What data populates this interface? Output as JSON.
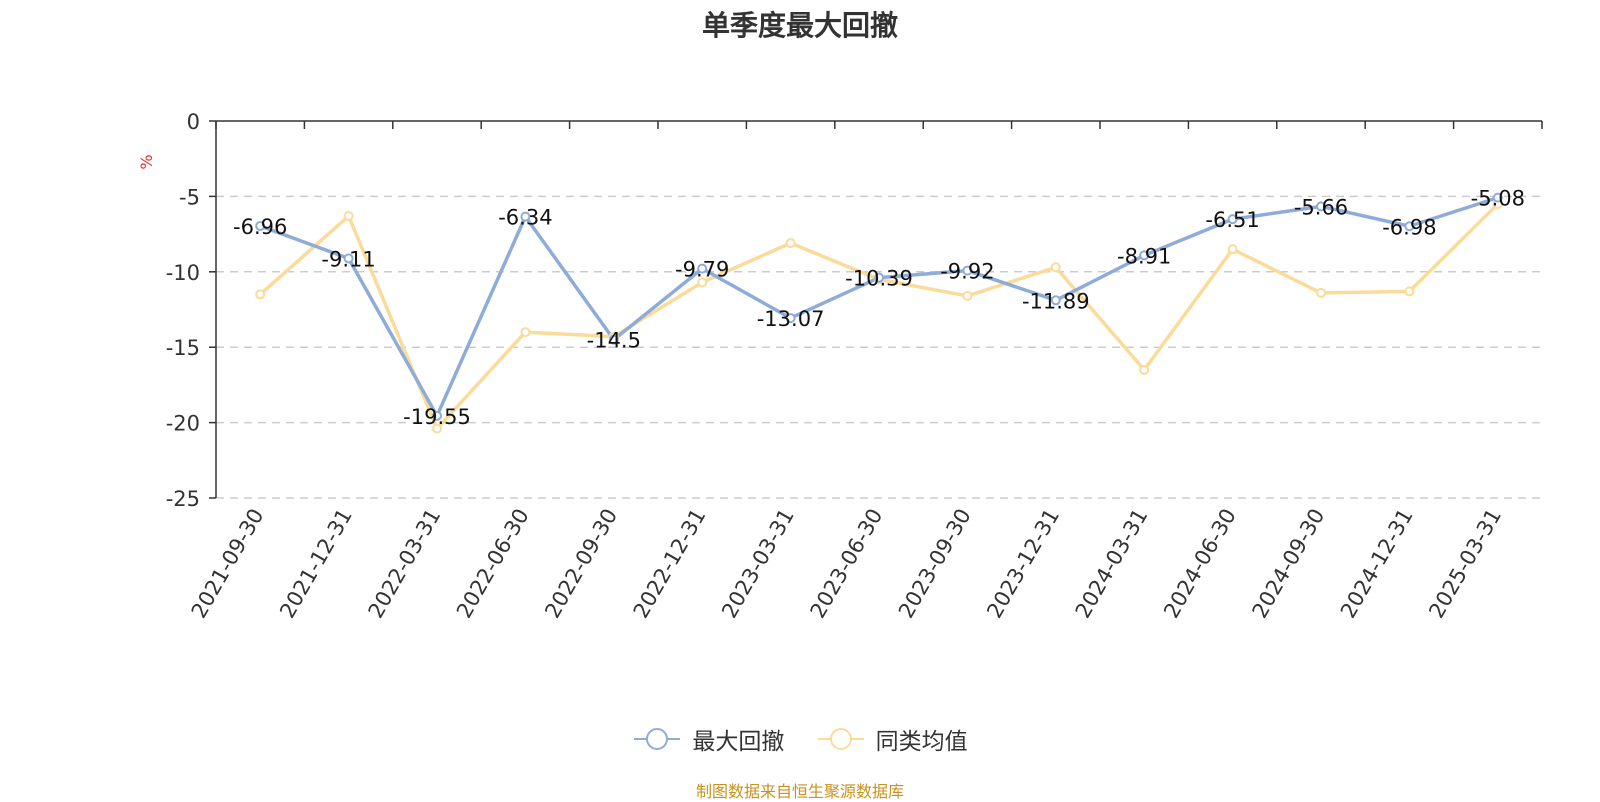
{
  "title": "单季度最大回撤",
  "source_note": "制图数据来自恒生聚源数据库",
  "y_unit_label": "%",
  "colors": {
    "series_max_drawdown": "#8eacd8",
    "series_peer_average": "#fadb9a",
    "unit_label": "#e03030",
    "axis": "#333333",
    "grid": "#cccccc",
    "source_note": "#c8921f"
  },
  "chart_data": {
    "type": "line",
    "title": "单季度最大回撤",
    "ylabel": "%",
    "xlabel": "",
    "ylim": [
      -25,
      0
    ],
    "yticks": [
      0,
      -5,
      -10,
      -15,
      -20,
      -25
    ],
    "grid": true,
    "legend_position": "bottom-center",
    "categories": [
      "2021-09-30",
      "2021-12-31",
      "2022-03-31",
      "2022-06-30",
      "2022-09-30",
      "2022-12-31",
      "2023-03-31",
      "2023-06-30",
      "2023-09-30",
      "2023-12-31",
      "2024-03-31",
      "2024-06-30",
      "2024-09-30",
      "2024-12-31",
      "2025-03-31"
    ],
    "series": [
      {
        "name": "最大回撤",
        "values": [
          -6.96,
          -9.11,
          -19.55,
          -6.34,
          -14.5,
          -9.79,
          -13.07,
          -10.39,
          -9.92,
          -11.89,
          -8.91,
          -6.51,
          -5.66,
          -6.98,
          -5.08
        ],
        "labels": [
          "-6.96",
          "-9.11",
          "-19.55",
          "-6.34",
          "-14.5",
          "-9.79",
          "-13.07",
          "-10.39",
          "-9.92",
          "-11.89",
          "-8.91",
          "-6.51",
          "-5.66",
          "-6.98",
          "-5.08"
        ]
      },
      {
        "name": "同类均值",
        "values": [
          -11.5,
          -6.3,
          -20.4,
          -14.0,
          -14.3,
          -10.7,
          -8.1,
          -10.5,
          -11.6,
          -9.7,
          -16.5,
          -8.5,
          -11.4,
          -11.3,
          -5.5
        ]
      }
    ]
  }
}
